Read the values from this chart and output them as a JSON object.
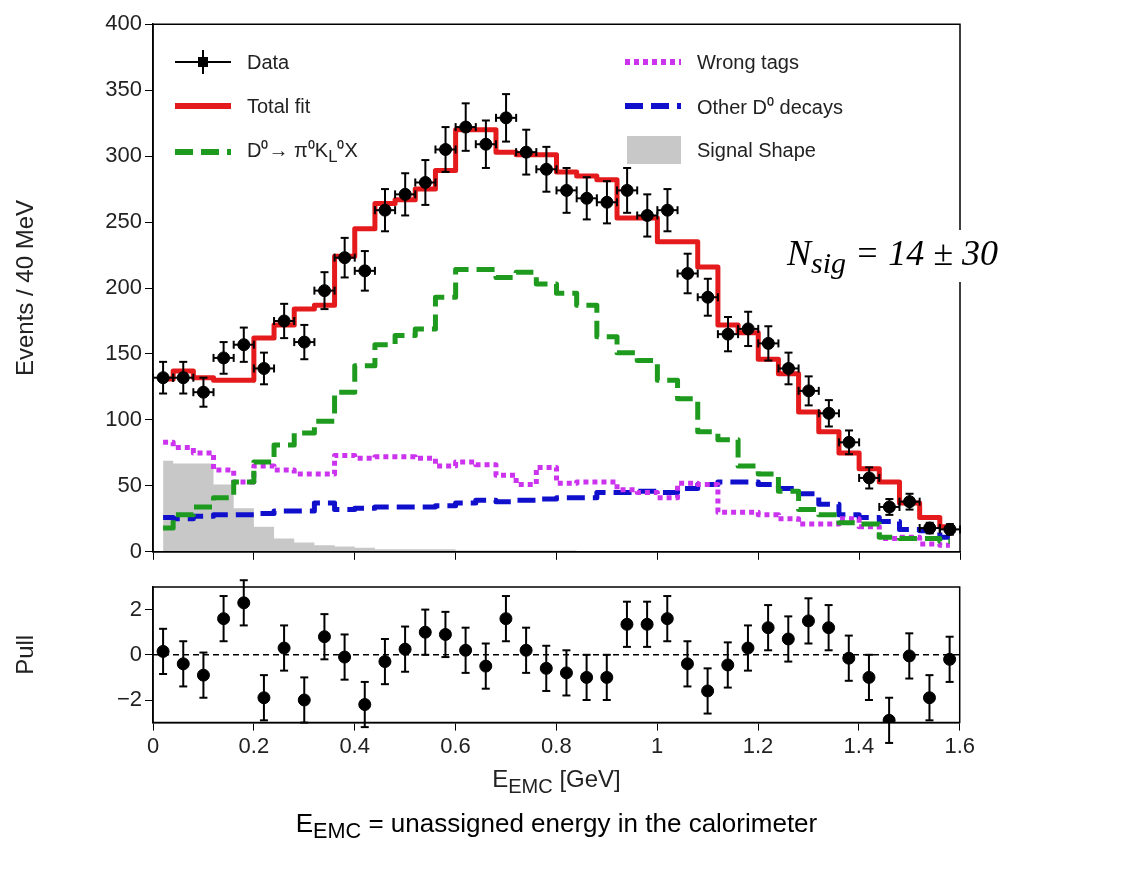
{
  "chart_data": [
    {
      "type": "step",
      "ylabel": "Events / 40 MeV",
      "legend": "top",
      "tick_labels": "y",
      "xlim": [
        0,
        1.6
      ],
      "xticks": [
        0,
        0.2,
        0.4,
        0.6,
        0.8,
        1,
        1.2,
        1.4,
        1.6
      ],
      "ylim": [
        0,
        400
      ],
      "yticks": [
        0,
        50,
        100,
        150,
        200,
        250,
        300,
        350,
        400
      ],
      "x": [
        0.02,
        0.06,
        0.1,
        0.14,
        0.18,
        0.22,
        0.26,
        0.3,
        0.34,
        0.38,
        0.42,
        0.46,
        0.5,
        0.54,
        0.58,
        0.62,
        0.66,
        0.7,
        0.74,
        0.78,
        0.82,
        0.86,
        0.9,
        0.94,
        0.98,
        1.02,
        1.06,
        1.1,
        1.14,
        1.18,
        1.22,
        1.26,
        1.3,
        1.34,
        1.38,
        1.42,
        1.46,
        1.5,
        1.54,
        1.58
      ],
      "annotations": [
        "N$_{sig}$ = 14 ± 30"
      ],
      "series": [
        {
          "name": "Data",
          "type": "scatter",
          "color": "#000000",
          "marker": "circle",
          "values": [
            132,
            132,
            121,
            147,
            157,
            139,
            175,
            159,
            198,
            223,
            213,
            259,
            271,
            280,
            305,
            322,
            309,
            329,
            303,
            290,
            274,
            268,
            265,
            274,
            255,
            259,
            211,
            193,
            165,
            169,
            158,
            139,
            122,
            105,
            83,
            56,
            34,
            38,
            18,
            17
          ],
          "errors": [
            12,
            12,
            11,
            12,
            13,
            12,
            13,
            13,
            14,
            15,
            15,
            16,
            16,
            17,
            17,
            18,
            18,
            18,
            17,
            17,
            17,
            16,
            16,
            17,
            16,
            16,
            15,
            14,
            13,
            13,
            13,
            12,
            11,
            10,
            9,
            8,
            6,
            6,
            4,
            4
          ],
          "xerrors": [
            0.02,
            0.02,
            0.02,
            0.02,
            0.02,
            0.02,
            0.02,
            0.02,
            0.02,
            0.02,
            0.02,
            0.02,
            0.02,
            0.02,
            0.02,
            0.02,
            0.02,
            0.02,
            0.02,
            0.02,
            0.02,
            0.02,
            0.02,
            0.02,
            0.02,
            0.02,
            0.02,
            0.02,
            0.02,
            0.02,
            0.02,
            0.02,
            0.02,
            0.02,
            0.02,
            0.02,
            0.02,
            0.02,
            0.02,
            0.02
          ]
        },
        {
          "name": "Total fit",
          "type": "step",
          "color": "#e41a1c",
          "line_style": "solid",
          "values": [
            131,
            137,
            132,
            130,
            130,
            162,
            172,
            184,
            187,
            224,
            245,
            264,
            267,
            275,
            289,
            320,
            320,
            303,
            301,
            301,
            288,
            285,
            282,
            253,
            253,
            235,
            235,
            216,
            172,
            166,
            146,
            135,
            106,
            91,
            75,
            63,
            53,
            37,
            26,
            19
          ]
        },
        {
          "name": "D⁰→ π⁰K$_{L}$⁰X",
          "type": "step",
          "color": "#1e9a1e",
          "line_style": "dashed",
          "values": [
            18,
            28,
            34,
            41,
            53,
            68,
            81,
            90,
            99,
            121,
            141,
            157,
            164,
            169,
            193,
            214,
            214,
            208,
            212,
            203,
            196,
            187,
            163,
            151,
            145,
            130,
            116,
            91,
            85,
            65,
            59,
            46,
            32,
            28,
            22,
            21,
            11,
            10,
            10,
            8
          ]
        },
        {
          "name": "Wrong tags",
          "type": "step",
          "color": "#cc33ee",
          "line_style": "dotted",
          "values": [
            83,
            79,
            75,
            62,
            53,
            65,
            62,
            59,
            59,
            73,
            71,
            72,
            72,
            71,
            65,
            68,
            66,
            58,
            51,
            64,
            52,
            53,
            53,
            47,
            45,
            41,
            52,
            51,
            30,
            30,
            28,
            25,
            21,
            21,
            25,
            19,
            10,
            11,
            6,
            5
          ]
        },
        {
          "name": "Other D⁰ decays",
          "type": "step",
          "color": "#1010cc",
          "line_style": "dashed",
          "values": [
            26,
            25,
            27,
            28,
            28,
            29,
            31,
            31,
            37,
            32,
            33,
            34,
            34,
            34,
            35,
            37,
            39,
            38,
            39,
            40,
            41,
            41,
            45,
            45,
            46,
            45,
            48,
            51,
            53,
            53,
            51,
            48,
            44,
            36,
            28,
            26,
            23,
            17,
            16,
            11
          ]
        },
        {
          "name": "Signal Shape",
          "type": "area",
          "color": "#c8c8c8",
          "values": [
            69,
            67,
            67,
            51,
            33,
            19,
            10,
            7,
            5,
            4,
            3,
            2,
            2,
            2,
            2,
            1,
            1,
            1,
            1,
            1,
            1,
            0,
            0,
            0,
            0,
            0,
            0,
            0,
            0,
            0,
            0,
            0,
            0,
            0,
            0,
            0,
            0,
            0,
            0,
            0
          ]
        }
      ]
    },
    {
      "type": "scatter",
      "ylabel": "Pull",
      "xlabel": "E$_{EMC}$ [GeV]",
      "xlim": [
        0,
        1.6
      ],
      "xticks": [
        0,
        0.2,
        0.4,
        0.6,
        0.8,
        1,
        1.2,
        1.4,
        1.6
      ],
      "ylim": [
        -3,
        3
      ],
      "yticks": [
        {
          "value": -2,
          "label": "−2"
        },
        0,
        2
      ],
      "x": [
        0.02,
        0.06,
        0.1,
        0.14,
        0.18,
        0.22,
        0.26,
        0.3,
        0.34,
        0.38,
        0.42,
        0.46,
        0.5,
        0.54,
        0.58,
        0.62,
        0.66,
        0.7,
        0.74,
        0.78,
        0.82,
        0.86,
        0.9,
        0.94,
        0.98,
        1.02,
        1.06,
        1.1,
        1.14,
        1.18,
        1.22,
        1.26,
        1.3,
        1.34,
        1.38,
        1.42,
        1.46,
        1.5,
        1.54,
        1.58
      ],
      "ref_lines": [
        {
          "axis": "y",
          "value": 0,
          "color": "#000000",
          "line_style": "dashed"
        }
      ],
      "annotations": [
        "E$_{EMC}$ = unassigned energy in the calorimeter"
      ],
      "series": [
        {
          "color": "#000000",
          "marker": "circle",
          "values": [
            0.15,
            -0.4,
            -0.9,
            1.6,
            2.3,
            -1.9,
            0.3,
            -2,
            0.8,
            -0.1,
            -2.2,
            -0.3,
            0.25,
            1,
            0.9,
            0.2,
            -0.5,
            1.6,
            0.2,
            -0.6,
            -0.8,
            -1,
            -1,
            1.35,
            1.35,
            1.6,
            -0.4,
            -1.6,
            -0.45,
            0.3,
            1.2,
            0.7,
            1.5,
            1.2,
            -0.15,
            -1,
            -2.9,
            -0.05,
            -1.9,
            -0.2
          ],
          "errors": [
            1,
            1,
            1,
            1,
            1,
            1,
            1,
            1,
            1,
            1,
            1,
            1,
            1,
            1,
            1,
            1,
            1,
            1,
            1,
            1,
            1,
            1,
            1,
            1,
            1,
            1,
            1,
            1,
            1,
            1,
            1,
            1,
            1,
            1,
            1,
            1,
            1,
            1,
            1,
            1
          ]
        }
      ]
    }
  ]
}
